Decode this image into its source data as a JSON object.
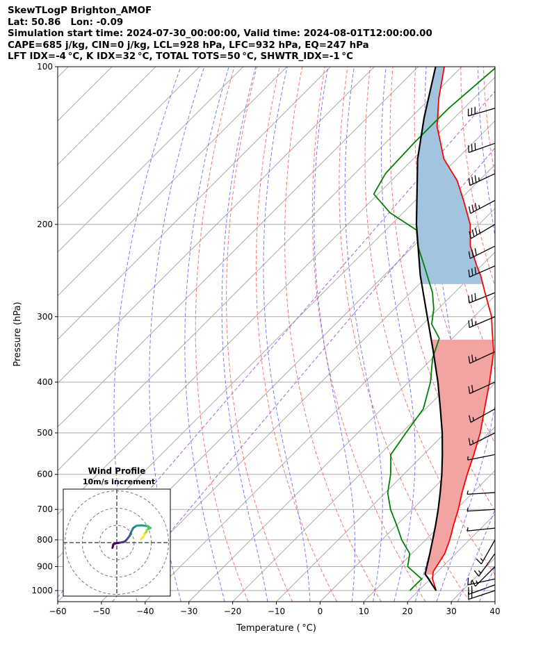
{
  "header": {
    "lines": [
      "SkewTLogP Brighton_AMOF",
      "Lat: 50.86   Lon: -0.09",
      "Simulation start time: 2024-07-30_00:00:00, Valid time: 2024-08-01T12:00:00.00",
      "CAPE=685 j/kg, CIN=0 j/kg, LCL=928 hPa, LFC=932 hPa, EQ=247 hPa",
      "LFT IDX=-4 °C, K IDX=32 °C, TOTAL TOTS=50 °C, SHWTR_IDX=-1 °C"
    ]
  },
  "chart_data": {
    "type": "skew-t log-p",
    "xlabel": "Temperature ( °C)",
    "ylabel": "Pressure (hPa)",
    "xlim": [
      -60,
      40
    ],
    "ylim": [
      1050,
      100
    ],
    "y_scale": "log",
    "grid": true,
    "x_ticks": [
      {
        "value": -60,
        "label": "−60"
      },
      {
        "value": -50,
        "label": "−50"
      },
      {
        "value": -40,
        "label": "−40"
      },
      {
        "value": -30,
        "label": "−30"
      },
      {
        "value": -20,
        "label": "−20"
      },
      {
        "value": -10,
        "label": "−10"
      },
      {
        "value": 0,
        "label": "0"
      },
      {
        "value": 10,
        "label": "10"
      },
      {
        "value": 20,
        "label": "20"
      },
      {
        "value": 30,
        "label": "30"
      },
      {
        "value": 40,
        "label": "40"
      }
    ],
    "y_ticks": [
      {
        "value": 100,
        "label": "100"
      },
      {
        "value": 200,
        "label": "200"
      },
      {
        "value": 300,
        "label": "300"
      },
      {
        "value": 400,
        "label": "400"
      },
      {
        "value": 500,
        "label": "500"
      },
      {
        "value": 600,
        "label": "600"
      },
      {
        "value": 700,
        "label": "700"
      },
      {
        "value": 800,
        "label": "800"
      },
      {
        "value": 900,
        "label": "900"
      },
      {
        "value": 1000,
        "label": "1000"
      }
    ],
    "series": [
      {
        "role": "temperature",
        "color": "#ff0000",
        "points": [
          [
            1000,
            24.0
          ],
          [
            950,
            20.5
          ],
          [
            920,
            19.0
          ],
          [
            850,
            17.5
          ],
          [
            800,
            15.5
          ],
          [
            750,
            13.0
          ],
          [
            700,
            10.5
          ],
          [
            650,
            7.5
          ],
          [
            600,
            4.5
          ],
          [
            550,
            1.5
          ],
          [
            500,
            -2.0
          ],
          [
            450,
            -6.5
          ],
          [
            400,
            -11.5
          ],
          [
            350,
            -17.5
          ],
          [
            320,
            -22.5
          ],
          [
            300,
            -26.0
          ],
          [
            270,
            -33.0
          ],
          [
            250,
            -38.0
          ],
          [
            240,
            -41.0
          ],
          [
            220,
            -47.0
          ],
          [
            200,
            -52.0
          ],
          [
            180,
            -59.0
          ],
          [
            165,
            -65.0
          ],
          [
            150,
            -73.0
          ],
          [
            130,
            -82.0
          ],
          [
            115,
            -88.0
          ],
          [
            100,
            -94.0
          ]
        ]
      },
      {
        "role": "dewpoint",
        "color": "#008000",
        "points": [
          [
            1000,
            18.0
          ],
          [
            980,
            18.0
          ],
          [
            950,
            18.0
          ],
          [
            900,
            12.0
          ],
          [
            850,
            9.5
          ],
          [
            800,
            4.5
          ],
          [
            750,
            0.0
          ],
          [
            700,
            -5.0
          ],
          [
            650,
            -9.5
          ],
          [
            600,
            -13.0
          ],
          [
            550,
            -17.5
          ],
          [
            500,
            -19.0
          ],
          [
            450,
            -20.5
          ],
          [
            400,
            -25.0
          ],
          [
            360,
            -30.0
          ],
          [
            330,
            -33.0
          ],
          [
            310,
            -38.0
          ],
          [
            290,
            -41.0
          ],
          [
            270,
            -45.0
          ],
          [
            240,
            -53.0
          ],
          [
            220,
            -59.0
          ],
          [
            205,
            -63.0
          ],
          [
            190,
            -73.0
          ],
          [
            175,
            -81.0
          ],
          [
            160,
            -83.0
          ],
          [
            140,
            -83.5
          ],
          [
            120,
            -83.5
          ],
          [
            100,
            -82.0
          ]
        ]
      },
      {
        "role": "parcel profile",
        "color": "#000000",
        "points": [
          [
            1000,
            24.0
          ],
          [
            975,
            21.8
          ],
          [
            950,
            19.6
          ],
          [
            930,
            17.7
          ],
          [
            900,
            16.4
          ],
          [
            850,
            14.1
          ],
          [
            800,
            11.6
          ],
          [
            750,
            8.9
          ],
          [
            700,
            5.9
          ],
          [
            650,
            2.5
          ],
          [
            600,
            -1.3
          ],
          [
            550,
            -5.7
          ],
          [
            500,
            -10.7
          ],
          [
            450,
            -16.6
          ],
          [
            400,
            -23.3
          ],
          [
            350,
            -31.3
          ],
          [
            300,
            -40.7
          ],
          [
            250,
            -51.8
          ],
          [
            200,
            -64.3
          ],
          [
            150,
            -79.0
          ],
          [
            125,
            -87.0
          ],
          [
            100,
            -96.0
          ]
        ]
      }
    ],
    "shading": [
      {
        "role": "CAPE",
        "color": "#f4a3a3",
        "between": "parcel profile and temperature",
        "from_hPa": 932,
        "to_hPa": 332
      },
      {
        "role": "positive area aloft",
        "color": "#a2c4df",
        "between": "parcel profile and temperature",
        "from_hPa": 260,
        "to_hPa": 100
      }
    ],
    "reference_lines": {
      "isotherms": {
        "color": "#aaaaaa",
        "every_degC": 10
      },
      "dry_adiabats": {
        "color": "#ff6262",
        "style": "dashed",
        "theta_C": [
          -20,
          -10,
          0,
          10,
          20,
          30,
          40,
          50,
          60,
          70,
          80,
          90,
          100,
          110,
          120,
          130,
          140,
          150,
          160
        ]
      },
      "moist_adiabats": {
        "color": "#6a6aff",
        "style": "dashed",
        "start_1000hPa_C": [
          -45,
          -35,
          -25,
          -15,
          -5,
          5,
          10,
          15,
          20,
          25,
          30,
          35
        ]
      },
      "mixing_ratio": {
        "color": "#9b4fd9",
        "style": "dashed",
        "g_per_kg": [
          0.01,
          0.05
        ]
      }
    },
    "wind_barbs": {
      "color": "#000000",
      "levels": [
        {
          "p": 1000,
          "u": 12.0,
          "v": 4.0
        },
        {
          "p": 975,
          "u": 11.0,
          "v": 4.0
        },
        {
          "p": 950,
          "u": 9.0,
          "v": 2.0
        },
        {
          "p": 900,
          "u": 6.0,
          "v": 6.0
        },
        {
          "p": 850,
          "u": 5.0,
          "v": 7.0
        },
        {
          "p": 800,
          "u": 4.5,
          "v": 8.0
        },
        {
          "p": 760,
          "u": 5.0,
          "v": 0.5
        },
        {
          "p": 700,
          "u": 5.0,
          "v": 0.3
        },
        {
          "p": 650,
          "u": 5.0,
          "v": 0.3
        },
        {
          "p": 550,
          "u": 5.0,
          "v": 1.0
        },
        {
          "p": 500,
          "u": 8.0,
          "v": 4.0
        },
        {
          "p": 450,
          "u": 9.0,
          "v": 5.0
        },
        {
          "p": 400,
          "u": 11.0,
          "v": 5.0
        },
        {
          "p": 350,
          "u": 13.0,
          "v": 6.0
        },
        {
          "p": 300,
          "u": 14.0,
          "v": 6.0
        },
        {
          "p": 270,
          "u": 15.0,
          "v": 6.0
        },
        {
          "p": 240,
          "u": 16.0,
          "v": 7.0
        },
        {
          "p": 220,
          "u": 16.0,
          "v": 8.0
        },
        {
          "p": 200,
          "u": 17.0,
          "v": 10.0
        },
        {
          "p": 180,
          "u": 17.0,
          "v": 9.0
        },
        {
          "p": 160,
          "u": 17.0,
          "v": 8.0
        },
        {
          "p": 140,
          "u": 17.0,
          "v": 6.0
        },
        {
          "p": 120,
          "u": 17.0,
          "v": 5.0
        }
      ]
    },
    "hodograph": {
      "title": "Wind Profile",
      "subtitle": "10m/s increment",
      "ring_step_ms": 10,
      "ring_count": 3,
      "range_ms": 31,
      "colormap": "viridis",
      "trace": [
        [
          -2.5,
          -3.0
        ],
        [
          -2.0,
          -1.0
        ],
        [
          -1.0,
          -0.5
        ],
        [
          2.0,
          0.0
        ],
        [
          4.5,
          0.5
        ],
        [
          6.0,
          2.0
        ],
        [
          7.5,
          4.0
        ],
        [
          8.5,
          6.5
        ],
        [
          9.5,
          8.5
        ],
        [
          11.5,
          9.8
        ],
        [
          14.5,
          10.0
        ],
        [
          18.0,
          9.5
        ],
        [
          19.5,
          8.5
        ],
        [
          17.5,
          7.5
        ],
        [
          17.0,
          6.0
        ],
        [
          16.0,
          5.0
        ],
        [
          15.5,
          3.5
        ],
        [
          14.0,
          2.0
        ]
      ]
    }
  }
}
